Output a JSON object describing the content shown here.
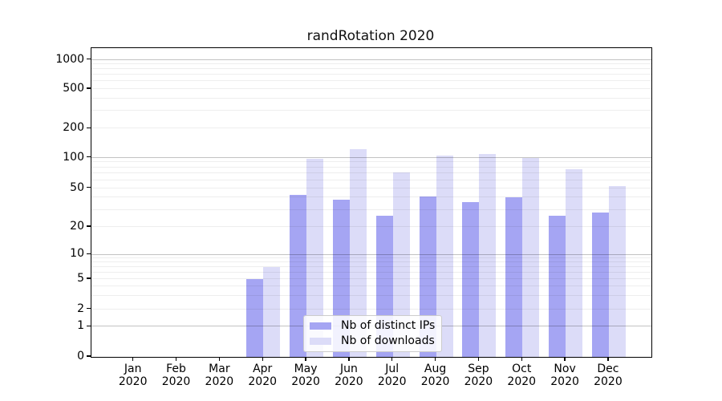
{
  "title": "randRotation 2020",
  "chart_data": {
    "type": "bar",
    "title": "randRotation 2020",
    "categories": [
      "Jan",
      "Feb",
      "Mar",
      "Apr",
      "May",
      "Jun",
      "Jul",
      "Aug",
      "Sep",
      "Oct",
      "Nov",
      "Dec"
    ],
    "x_tick_year": "2020",
    "series": [
      {
        "name": "Nb of distinct IPs",
        "color": "#a5a5f3",
        "values": [
          0,
          0,
          0,
          5,
          43,
          38,
          26,
          41,
          36,
          40,
          26,
          28
        ]
      },
      {
        "name": "Nb of downloads",
        "color": "#dcdcf8",
        "values": [
          0,
          0,
          0,
          7,
          97,
          122,
          72,
          106,
          110,
          100,
          77,
          52
        ]
      }
    ],
    "xlabel": "",
    "ylabel": "",
    "y_ticks": [
      0,
      1,
      2,
      5,
      10,
      20,
      50,
      100,
      200,
      500,
      1000
    ],
    "y_scale": "symlog",
    "ylim": [
      0,
      1300
    ],
    "grid": true,
    "grid_minor_values": [
      2,
      3,
      4,
      5,
      6,
      7,
      8,
      9,
      20,
      30,
      40,
      50,
      60,
      70,
      80,
      90,
      200,
      300,
      400,
      500,
      600,
      700,
      800,
      900
    ],
    "grid_major_values": [
      1,
      10,
      100,
      1000
    ],
    "legend_position": "inside-bottom-center"
  }
}
